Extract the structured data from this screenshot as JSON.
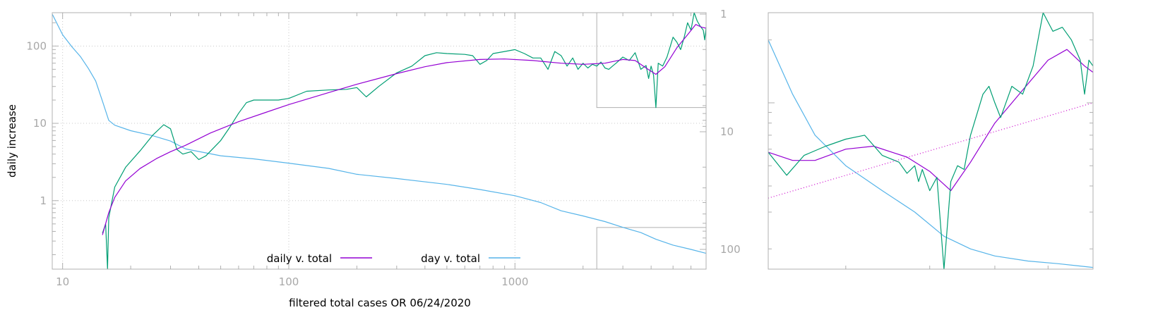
{
  "chart_data": [
    {
      "type": "line",
      "title": "",
      "xlabel": "filtered total cases OR 06/24/2020",
      "ylabel": "daily increase",
      "x_scale": "log",
      "y_scale": "log",
      "y2_scale": "log",
      "y2_reversed": true,
      "xlim": [
        9,
        7000
      ],
      "ylim": [
        0.13,
        270
      ],
      "y2lim": [
        1,
        130
      ],
      "x_ticks": [
        {
          "v": 10,
          "label": "10"
        },
        {
          "v": 100,
          "label": "100"
        },
        {
          "v": 1000,
          "label": "1000"
        }
      ],
      "y_ticks": [
        {
          "v": 1,
          "label": "1"
        },
        {
          "v": 10,
          "label": "10"
        },
        {
          "v": 100,
          "label": "100"
        }
      ],
      "y2_ticks": [
        {
          "v": 1,
          "label": "1"
        },
        {
          "v": 10,
          "label": "10"
        },
        {
          "v": 100,
          "label": "100"
        }
      ],
      "grid": true,
      "legend_position": "bottom-center",
      "zoom_box": {
        "x": [
          2300,
          7000
        ],
        "y": [
          16,
          270
        ]
      },
      "zoom_box_lower": {
        "x": [
          2300,
          7000
        ],
        "y": [
          0.13,
          0.45
        ]
      },
      "series": [
        {
          "name": "daily v. total",
          "axis": "y",
          "color": "#9400d3",
          "points": [
            [
              15,
              0.36
            ],
            [
              16,
              0.7
            ],
            [
              17,
              1.1
            ],
            [
              19,
              1.8
            ],
            [
              22,
              2.6
            ],
            [
              26,
              3.5
            ],
            [
              30,
              4.3
            ],
            [
              35,
              5.2
            ],
            [
              45,
              7.5
            ],
            [
              60,
              10.5
            ],
            [
              80,
              14
            ],
            [
              100,
              17.5
            ],
            [
              150,
              25
            ],
            [
              200,
              32
            ],
            [
              300,
              44
            ],
            [
              400,
              54
            ],
            [
              500,
              61
            ],
            [
              700,
              67
            ],
            [
              900,
              68
            ],
            [
              1200,
              65
            ],
            [
              1600,
              60
            ],
            [
              2000,
              58
            ],
            [
              2500,
              60
            ],
            [
              3000,
              67
            ],
            [
              3400,
              65
            ],
            [
              3800,
              52
            ],
            [
              4200,
              43
            ],
            [
              4600,
              54
            ],
            [
              5200,
              95
            ],
            [
              5800,
              140
            ],
            [
              6300,
              190
            ],
            [
              6700,
              175
            ],
            [
              7000,
              170
            ]
          ]
        },
        {
          "name": "day v. total",
          "axis": "y2",
          "color": "#56b4e9",
          "points": [
            [
              9,
              1
            ],
            [
              10,
              1.5
            ],
            [
              11,
              1.9
            ],
            [
              12,
              2.3
            ],
            [
              13,
              2.9
            ],
            [
              14,
              3.7
            ],
            [
              15,
              5.5
            ],
            [
              16,
              8
            ],
            [
              17,
              8.8
            ],
            [
              20,
              9.8
            ],
            [
              25,
              10.8
            ],
            [
              30,
              12
            ],
            [
              35,
              14
            ],
            [
              50,
              16
            ],
            [
              70,
              17
            ],
            [
              100,
              18.5
            ],
            [
              150,
              20.5
            ],
            [
              200,
              23
            ],
            [
              300,
              25
            ],
            [
              500,
              28
            ],
            [
              700,
              31
            ],
            [
              1000,
              35
            ],
            [
              1300,
              40
            ],
            [
              1600,
              47
            ],
            [
              2000,
              52
            ],
            [
              2500,
              58
            ],
            [
              3000,
              65
            ],
            [
              3600,
              72
            ],
            [
              4200,
              82
            ],
            [
              5000,
              92
            ],
            [
              6000,
              100
            ],
            [
              7000,
              108
            ]
          ]
        },
        {
          "name": "",
          "axis": "y",
          "color": "#009e73",
          "points": [
            [
              15,
              0.38
            ],
            [
              15.5,
              0.5
            ],
            [
              15.8,
              0.13
            ],
            [
              16,
              0.6
            ],
            [
              17,
              1.5
            ],
            [
              19,
              2.7
            ],
            [
              22,
              4.4
            ],
            [
              25,
              7
            ],
            [
              28,
              9.6
            ],
            [
              30,
              8.5
            ],
            [
              32,
              4.6
            ],
            [
              34,
              4
            ],
            [
              37,
              4.3
            ],
            [
              40,
              3.4
            ],
            [
              43,
              3.8
            ],
            [
              50,
              6
            ],
            [
              55,
              9
            ],
            [
              60,
              13.5
            ],
            [
              65,
              18.5
            ],
            [
              70,
              20
            ],
            [
              80,
              20
            ],
            [
              90,
              20
            ],
            [
              100,
              21
            ],
            [
              120,
              26
            ],
            [
              150,
              27
            ],
            [
              180,
              27.5
            ],
            [
              200,
              29
            ],
            [
              220,
              22
            ],
            [
              250,
              30
            ],
            [
              300,
              45
            ],
            [
              350,
              55
            ],
            [
              400,
              75
            ],
            [
              450,
              82
            ],
            [
              500,
              80
            ],
            [
              600,
              78
            ],
            [
              650,
              75
            ],
            [
              700,
              58
            ],
            [
              750,
              65
            ],
            [
              800,
              80
            ],
            [
              900,
              85
            ],
            [
              1000,
              90
            ],
            [
              1100,
              80
            ],
            [
              1200,
              70
            ],
            [
              1300,
              70
            ],
            [
              1400,
              50
            ],
            [
              1500,
              85
            ],
            [
              1600,
              75
            ],
            [
              1700,
              55
            ],
            [
              1800,
              70
            ],
            [
              1900,
              50
            ],
            [
              2000,
              60
            ],
            [
              2100,
              52
            ],
            [
              2200,
              58
            ],
            [
              2300,
              55
            ],
            [
              2400,
              62
            ],
            [
              2500,
              52
            ],
            [
              2600,
              50
            ],
            [
              2700,
              55
            ],
            [
              2800,
              60
            ],
            [
              3000,
              72
            ],
            [
              3200,
              65
            ],
            [
              3400,
              82
            ],
            [
              3600,
              50
            ],
            [
              3800,
              56
            ],
            [
              3900,
              38
            ],
            [
              4000,
              55
            ],
            [
              4100,
              42
            ],
            [
              4200,
              16
            ],
            [
              4300,
              60
            ],
            [
              4500,
              55
            ],
            [
              4700,
              72
            ],
            [
              5000,
              130
            ],
            [
              5200,
              112
            ],
            [
              5400,
              90
            ],
            [
              5600,
              130
            ],
            [
              5800,
              200
            ],
            [
              6000,
              160
            ],
            [
              6200,
              270
            ],
            [
              6400,
              210
            ],
            [
              6600,
              180
            ],
            [
              6800,
              160
            ],
            [
              6900,
              120
            ],
            [
              7000,
              175
            ]
          ]
        }
      ]
    },
    {
      "type": "line",
      "title": "",
      "xlabel": "",
      "ylabel": "",
      "description_scope": "zoomed region of the first chart",
      "x_scale": "log",
      "y_scale": "log",
      "y2_scale": "log",
      "xlim": [
        2300,
        7000
      ],
      "ylim": [
        16,
        270
      ],
      "grid": false,
      "series": [
        {
          "name": "daily v. total",
          "color": "#9400d3",
          "points": [
            [
              2300,
              58
            ],
            [
              2500,
              53
            ],
            [
              2700,
              53
            ],
            [
              3000,
              60
            ],
            [
              3300,
              62
            ],
            [
              3700,
              55
            ],
            [
              4000,
              47
            ],
            [
              4300,
              38
            ],
            [
              4600,
              52
            ],
            [
              5000,
              80
            ],
            [
              5500,
              115
            ],
            [
              6000,
              160
            ],
            [
              6400,
              180
            ],
            [
              6800,
              150
            ],
            [
              7000,
              140
            ]
          ]
        },
        {
          "name": "day v. total",
          "color": "#56b4e9",
          "points": [
            [
              2300,
              200
            ],
            [
              2500,
              110
            ],
            [
              2700,
              70
            ],
            [
              3000,
              50
            ],
            [
              3400,
              38
            ],
            [
              3800,
              30
            ],
            [
              4200,
              23
            ],
            [
              4600,
              20
            ],
            [
              5000,
              18.5
            ],
            [
              5600,
              17.5
            ],
            [
              6200,
              17
            ],
            [
              7000,
              16.3
            ]
          ]
        },
        {
          "name": "",
          "color": "#009e73",
          "points": [
            [
              2300,
              58
            ],
            [
              2450,
              45
            ],
            [
              2600,
              56
            ],
            [
              2800,
              62
            ],
            [
              3000,
              67
            ],
            [
              3200,
              70
            ],
            [
              3400,
              56
            ],
            [
              3600,
              52
            ],
            [
              3700,
              46
            ],
            [
              3800,
              50
            ],
            [
              3850,
              42
            ],
            [
              3900,
              48
            ],
            [
              4000,
              38
            ],
            [
              4100,
              44
            ],
            [
              4200,
              16
            ],
            [
              4300,
              42
            ],
            [
              4400,
              50
            ],
            [
              4500,
              48
            ],
            [
              4600,
              70
            ],
            [
              4800,
              110
            ],
            [
              4900,
              120
            ],
            [
              5000,
              100
            ],
            [
              5100,
              85
            ],
            [
              5300,
              120
            ],
            [
              5500,
              110
            ],
            [
              5700,
              150
            ],
            [
              5900,
              270
            ],
            [
              6100,
              220
            ],
            [
              6300,
              230
            ],
            [
              6500,
              200
            ],
            [
              6700,
              160
            ],
            [
              6800,
              110
            ],
            [
              6900,
              160
            ],
            [
              7000,
              150
            ]
          ]
        },
        {
          "name": "",
          "color": "#cc00cc",
          "style": "dotted",
          "points": [
            [
              2300,
              35
            ],
            [
              7000,
              100
            ]
          ]
        }
      ]
    }
  ]
}
